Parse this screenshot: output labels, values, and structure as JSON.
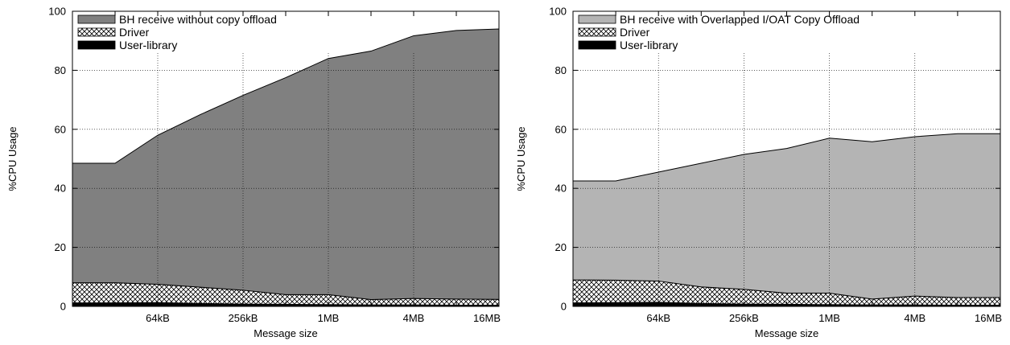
{
  "chart_data": [
    {
      "type": "area",
      "stacked": true,
      "xlabel": "Message size",
      "ylabel": "%CPU Usage",
      "x": [
        "16kB",
        "32kB",
        "64kB",
        "128kB",
        "256kB",
        "512kB",
        "1MB",
        "2MB",
        "4MB",
        "8MB",
        "16MB"
      ],
      "xticks": [
        "64kB",
        "256kB",
        "1MB",
        "4MB",
        "16MB"
      ],
      "ylim": [
        0,
        100
      ],
      "yticks": [
        0,
        20,
        40,
        60,
        80,
        100
      ],
      "grid": true,
      "legend": "top-left",
      "series": [
        {
          "name": "User-library",
          "values": [
            1.2,
            1.2,
            1.3,
            1.0,
            0.8,
            0.7,
            0.6,
            0.5,
            0.5,
            0.4,
            0.4
          ],
          "fill": "solid",
          "color": "#000000"
        },
        {
          "name": "Driver",
          "values": [
            6.8,
            6.8,
            6.2,
            5.5,
            4.7,
            3.3,
            3.4,
            1.8,
            2.2,
            2.1,
            2.0
          ],
          "fill": "crosshatch",
          "color": "#000000"
        },
        {
          "name": "BH receive without copy offload",
          "values": [
            40.5,
            40.5,
            50.5,
            58.5,
            66.0,
            73.5,
            80.0,
            84.2,
            89.0,
            91.0,
            91.6
          ],
          "fill": "solid",
          "color": "#808080"
        }
      ]
    },
    {
      "type": "area",
      "stacked": true,
      "xlabel": "Message size",
      "ylabel": "%CPU Usage",
      "x": [
        "16kB",
        "32kB",
        "64kB",
        "128kB",
        "256kB",
        "512kB",
        "1MB",
        "2MB",
        "4MB",
        "8MB",
        "16MB"
      ],
      "xticks": [
        "64kB",
        "256kB",
        "1MB",
        "4MB",
        "16MB"
      ],
      "ylim": [
        0,
        100
      ],
      "yticks": [
        0,
        20,
        40,
        60,
        80,
        100
      ],
      "grid": true,
      "legend": "top-left",
      "series": [
        {
          "name": "User-library",
          "values": [
            1.2,
            1.3,
            1.4,
            1.0,
            0.8,
            0.7,
            0.6,
            0.5,
            0.5,
            0.4,
            0.4
          ],
          "fill": "solid",
          "color": "#000000"
        },
        {
          "name": "Driver",
          "values": [
            7.8,
            7.6,
            7.2,
            5.6,
            5.0,
            3.8,
            3.9,
            2.0,
            3.0,
            2.6,
            2.6
          ],
          "fill": "crosshatch",
          "color": "#000000"
        },
        {
          "name": "BH receive with Overlapped I/OAT Copy Offload",
          "values": [
            33.5,
            33.6,
            36.9,
            41.9,
            45.7,
            49.0,
            52.5,
            53.3,
            54.0,
            55.5,
            55.5
          ],
          "fill": "solid",
          "color": "#b4b4b4"
        }
      ]
    }
  ]
}
